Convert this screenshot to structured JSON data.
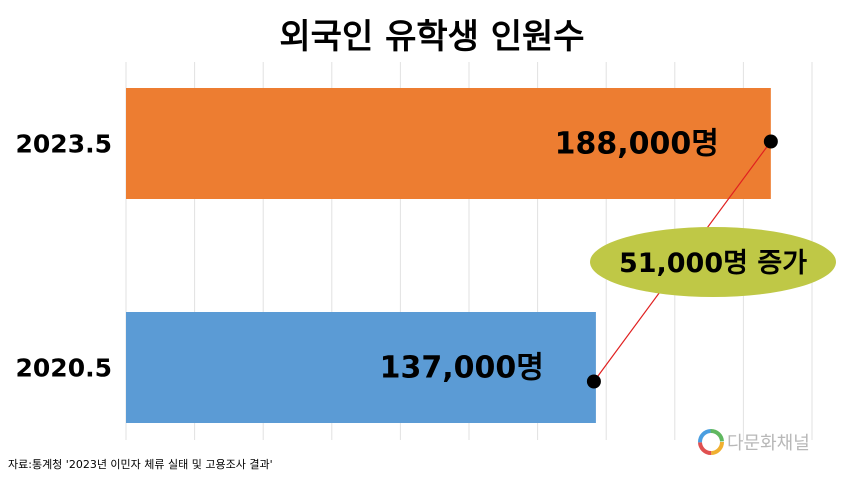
{
  "chart_data": {
    "type": "bar",
    "orientation": "horizontal",
    "title": "외국인 유학생 인원수",
    "categories": [
      "2023.5",
      "2020.5"
    ],
    "values": [
      188000,
      137000
    ],
    "data_labels": [
      "188,000명",
      "137,000명"
    ],
    "colors": [
      "#ed7d31",
      "#5b9bd5"
    ],
    "xlim": [
      0,
      200000
    ],
    "grid": true,
    "legend": "none",
    "annotation": {
      "text": "51,000명 증가",
      "fill": "#bfc846",
      "line_color": "#e02020"
    }
  },
  "footer": {
    "source": "자료:통계청 '2023년 이민자 체류 실태 및 고용조사 결과'",
    "brand": "다문화채널"
  }
}
